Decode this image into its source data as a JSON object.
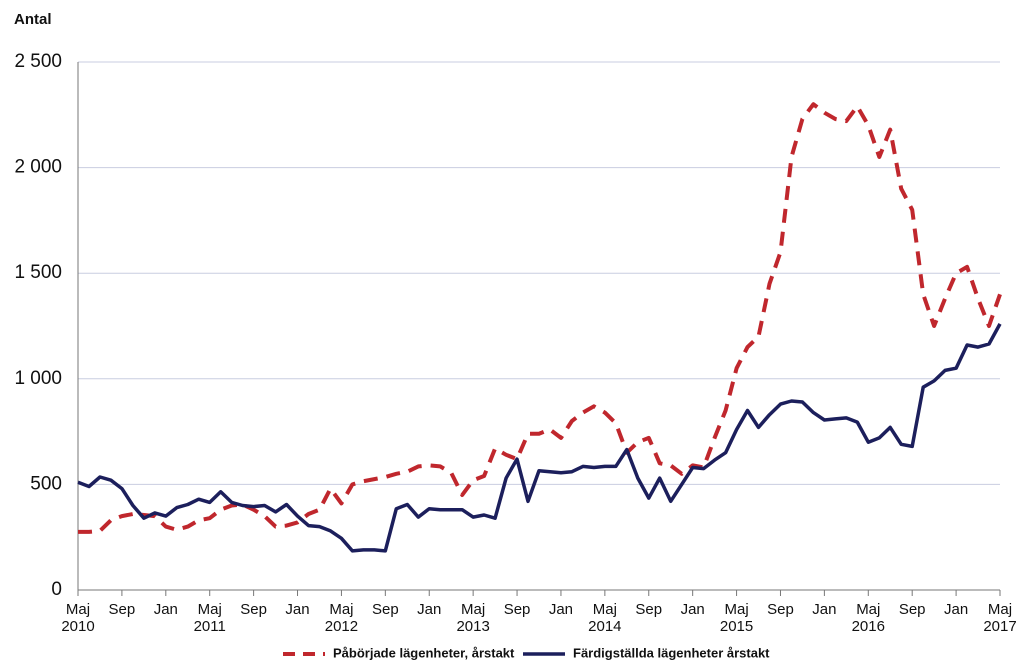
{
  "chart_data": {
    "type": "line",
    "ylabel": "Antal",
    "categories": [
      "Maj 2010",
      null,
      null,
      null,
      "Sep",
      null,
      null,
      null,
      "Jan",
      null,
      null,
      null,
      "Maj 2011",
      null,
      null,
      null,
      "Sep",
      null,
      null,
      null,
      "Jan",
      null,
      null,
      null,
      "Maj 2012",
      null,
      null,
      null,
      "Sep",
      null,
      null,
      null,
      "Jan",
      null,
      null,
      null,
      "Maj 2013",
      null,
      null,
      null,
      "Sep",
      null,
      null,
      null,
      "Jan",
      null,
      null,
      null,
      "Maj 2014",
      null,
      null,
      null,
      "Sep",
      null,
      null,
      null,
      "Jan",
      null,
      null,
      null,
      "Maj 2015",
      null,
      null,
      null,
      "Sep",
      null,
      null,
      null,
      "Jan",
      null,
      null,
      null,
      "Maj 2016",
      null,
      null,
      null,
      "Sep",
      null,
      null,
      null,
      "Jan",
      null,
      null,
      null,
      "Maj 2017"
    ],
    "series": [
      {
        "name": "Påbörjade lägenheter, årstakt",
        "color": "#c0272d",
        "dashed": true,
        "values": [
          275,
          275,
          280,
          330,
          350,
          360,
          355,
          350,
          300,
          285,
          300,
          330,
          340,
          380,
          400,
          405,
          380,
          350,
          300,
          305,
          320,
          360,
          380,
          480,
          410,
          500,
          515,
          525,
          535,
          550,
          560,
          585,
          590,
          585,
          555,
          450,
          520,
          540,
          670,
          640,
          620,
          740,
          740,
          760,
          720,
          800,
          840,
          870,
          840,
          790,
          650,
          700,
          720,
          600,
          590,
          550,
          590,
          580,
          720,
          850,
          1050,
          1150,
          1200,
          1450,
          1600,
          2050,
          2230,
          2300,
          2260,
          2230,
          2220,
          2290,
          2200,
          2050,
          2180,
          1900,
          1800,
          1400,
          1250,
          1380,
          1500,
          1530,
          1380,
          1250,
          1400
        ]
      },
      {
        "name": "Färdigställda lägenheter årstakt",
        "color": "#1c1f5c",
        "dashed": false,
        "values": [
          510,
          490,
          535,
          520,
          480,
          400,
          340,
          365,
          350,
          390,
          405,
          430,
          415,
          465,
          415,
          400,
          395,
          400,
          370,
          405,
          350,
          305,
          300,
          280,
          245,
          185,
          190,
          190,
          185,
          385,
          405,
          345,
          385,
          380,
          380,
          380,
          345,
          355,
          340,
          530,
          620,
          420,
          565,
          560,
          555,
          560,
          585,
          580,
          585,
          585,
          665,
          530,
          435,
          530,
          420,
          500,
          580,
          575,
          615,
          650,
          760,
          850,
          770,
          830,
          880,
          895,
          890,
          840,
          805,
          810,
          815,
          795,
          700,
          720,
          770,
          690,
          680,
          960,
          990,
          1040,
          1050,
          1160,
          1150,
          1165,
          1260
        ]
      }
    ],
    "ylim": [
      0,
      2500
    ],
    "yticks": [
      0,
      500,
      {
        "value": 1000,
        "label": "1 000"
      },
      {
        "value": 1500,
        "label": "1 500"
      },
      {
        "value": 2000,
        "label": "2 000"
      },
      {
        "value": 2500,
        "label": "2 500"
      }
    ],
    "grid": true,
    "legend": "bottom"
  }
}
